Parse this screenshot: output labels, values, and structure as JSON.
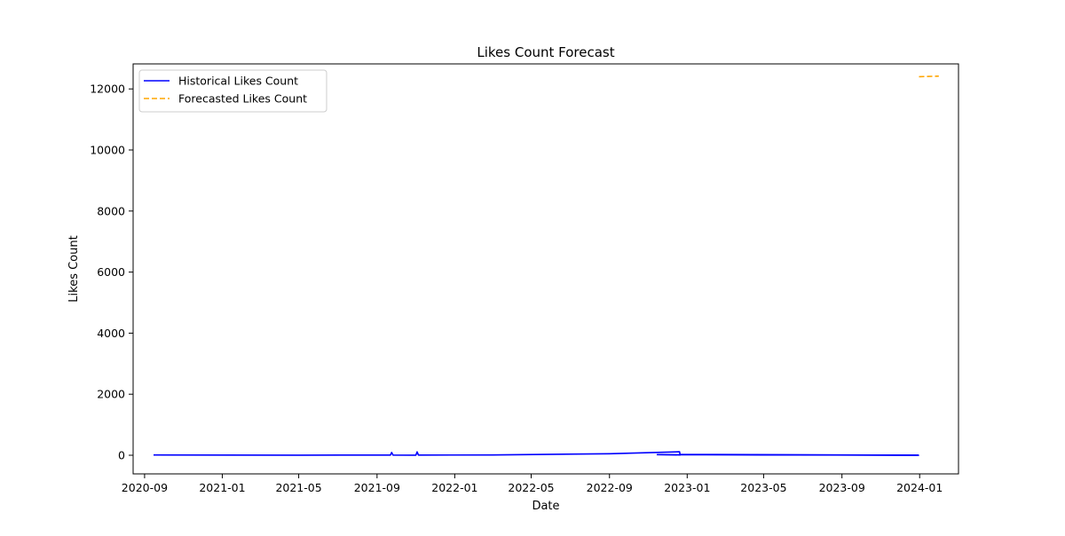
{
  "chart_data": {
    "type": "line",
    "title": "Likes Count Forecast",
    "xlabel": "Date",
    "ylabel": "Likes Count",
    "x_tick_labels": [
      "2020-09",
      "2021-01",
      "2021-05",
      "2021-09",
      "2022-01",
      "2022-05",
      "2022-09",
      "2023-01",
      "2023-05",
      "2023-09",
      "2024-01"
    ],
    "y_ticks": [
      0,
      2000,
      4000,
      6000,
      8000,
      10000,
      12000
    ],
    "y_tick_labels": [
      "0",
      "2000",
      "4000",
      "6000",
      "8000",
      "10000",
      "12000"
    ],
    "xlim": [
      "2020-08-14",
      "2024-03-02"
    ],
    "ylim": [
      -610,
      12820
    ],
    "grid": false,
    "legend_position": "upper-left",
    "series": [
      {
        "name": "Historical Likes Count",
        "color": "#0000ff",
        "style": "solid",
        "points": [
          {
            "x": "2020-09-15",
            "y": 8
          },
          {
            "x": "2021-05-01",
            "y": 3
          },
          {
            "x": "2021-09-22",
            "y": 5
          },
          {
            "x": "2021-09-24",
            "y": 90
          },
          {
            "x": "2021-09-26",
            "y": 5
          },
          {
            "x": "2021-11-01",
            "y": 4
          },
          {
            "x": "2021-11-03",
            "y": 110
          },
          {
            "x": "2021-11-05",
            "y": 5
          },
          {
            "x": "2022-03-01",
            "y": 10
          },
          {
            "x": "2022-09-01",
            "y": 50
          },
          {
            "x": "2022-12-20",
            "y": 115
          },
          {
            "x": "2022-12-21",
            "y": 10
          },
          {
            "x": "2022-11-15",
            "y": 20
          },
          {
            "x": "2023-05-01",
            "y": 10
          },
          {
            "x": "2023-12-10",
            "y": 5
          },
          {
            "x": "2023-12-30",
            "y": 5
          },
          {
            "x": "2023-12-15",
            "y": 2
          },
          {
            "x": "2022-12-21",
            "y": 30
          },
          {
            "x": "2023-07-01",
            "y": 8
          },
          {
            "x": "2023-12-31",
            "y": -5
          }
        ]
      },
      {
        "name": "Forecasted Likes Count",
        "color": "#ffa500",
        "style": "dashed",
        "points": [
          {
            "x": "2023-12-31",
            "y": 12400
          },
          {
            "x": "2024-01-31",
            "y": 12420
          }
        ]
      }
    ]
  }
}
